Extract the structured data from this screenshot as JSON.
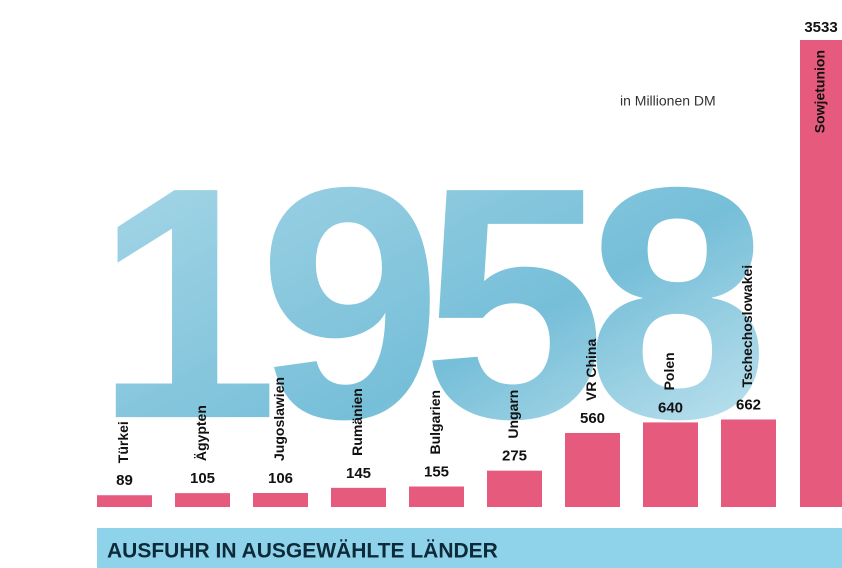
{
  "chart_data": {
    "type": "bar",
    "title": "AUSFUHR IN AUSGEWÄHLTE LÄNDER",
    "subtitle": "in Millionen DM",
    "background_text": "1958",
    "categories": [
      "Türkei",
      "Ägypten",
      "Jugoslawien",
      "Rumänien",
      "Bulgarien",
      "Ungarn",
      "VR China",
      "Polen",
      "Tschechoslowakei",
      "Sowjetunion"
    ],
    "values": [
      89,
      105,
      106,
      145,
      155,
      275,
      560,
      640,
      662,
      3533
    ],
    "color": "#e65a7e"
  }
}
